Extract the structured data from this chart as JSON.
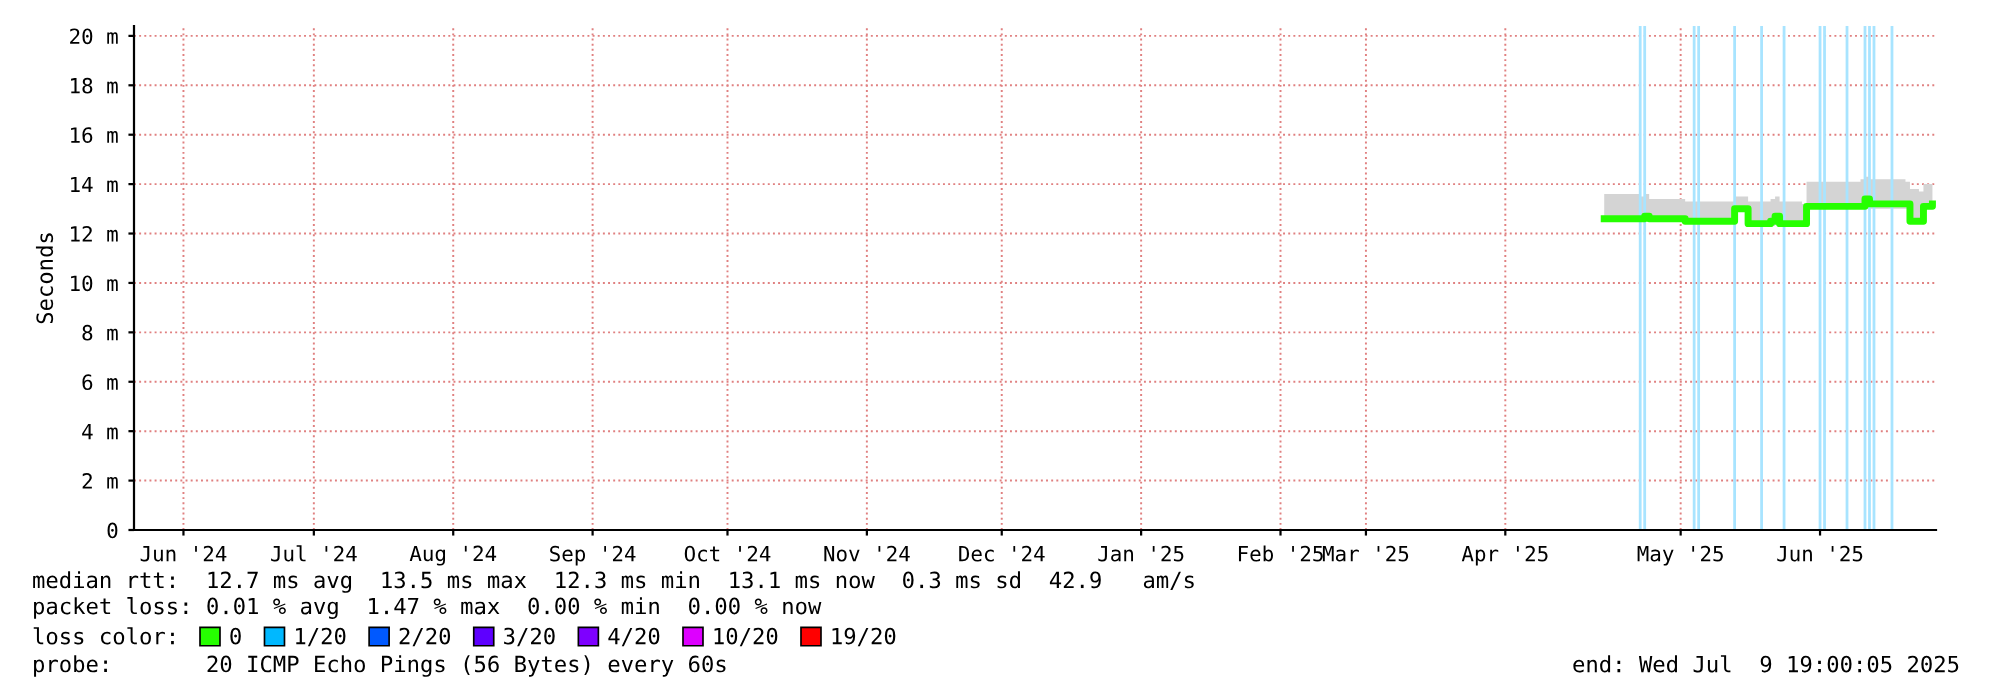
{
  "chart_data": {
    "type": "line",
    "ylabel": "Seconds",
    "xlim": [
      "2024-06-04",
      "2025-07-09T19:00"
    ],
    "xticks": [
      {
        "value": "2024-06-15",
        "label": "Jun '24"
      },
      {
        "value": "2024-07-14",
        "label": "Jul '24"
      },
      {
        "value": "2024-08-14",
        "label": "Aug '24"
      },
      {
        "value": "2024-09-14",
        "label": "Sep '24"
      },
      {
        "value": "2024-10-14",
        "label": "Oct '24"
      },
      {
        "value": "2024-11-14",
        "label": "Nov '24"
      },
      {
        "value": "2024-12-14",
        "label": "Dec '24"
      },
      {
        "value": "2025-01-14",
        "label": "Jan '25"
      },
      {
        "value": "2025-02-14",
        "label": "Feb '25"
      },
      {
        "value": "2025-03-05",
        "label": "Mar '25"
      },
      {
        "value": "2025-04-05",
        "label": "Apr '25"
      },
      {
        "value": "2025-05-14",
        "label": "May '25"
      },
      {
        "value": "2025-06-14",
        "label": "Jun '25"
      }
    ],
    "ylim": [
      0,
      20.4
    ],
    "yticks": [
      0,
      {
        "value": 2,
        "label": "2 m"
      },
      {
        "value": 4,
        "label": "4 m"
      },
      {
        "value": 6,
        "label": "6 m"
      },
      {
        "value": 8,
        "label": "8 m"
      },
      {
        "value": 10,
        "label": "10 m"
      },
      {
        "value": 12,
        "label": "12 m"
      },
      {
        "value": 14,
        "label": "14 m"
      },
      {
        "value": 16,
        "label": "16 m"
      },
      {
        "value": 18,
        "label": "18 m"
      },
      {
        "value": 20,
        "label": "20 m"
      }
    ],
    "grid": true,
    "legend": "bottom",
    "legend_title": "loss color:",
    "series": [
      {
        "name": "0",
        "color": "#26ff00",
        "x": [
          "2025-04-27",
          "2025-05-05",
          "2025-05-06",
          "2025-05-07",
          "2025-05-15",
          "2025-05-25",
          "2025-05-26",
          "2025-05-28",
          "2025-05-29",
          "2025-06-03",
          "2025-06-04",
          "2025-06-05",
          "2025-06-10",
          "2025-06-11",
          "2025-06-23",
          "2025-06-24",
          "2025-06-25",
          "2025-07-03",
          "2025-07-04",
          "2025-07-06",
          "2025-07-07",
          "2025-07-09"
        ],
        "values": [
          12.6,
          12.6,
          12.7,
          12.6,
          12.5,
          12.5,
          13.0,
          13.0,
          12.4,
          12.5,
          12.7,
          12.4,
          12.4,
          13.1,
          13.1,
          13.4,
          13.2,
          13.2,
          12.5,
          12.5,
          13.1,
          13.2
        ],
        "lower": [
          12.5,
          12.5,
          12.5,
          12.5,
          12.4,
          12.4,
          12.9,
          12.9,
          12.3,
          12.3,
          12.4,
          12.3,
          12.3,
          13.0,
          13.0,
          13.0,
          13.0,
          13.0,
          12.4,
          12.4,
          13.0,
          13.0
        ],
        "upper": [
          13.6,
          13.5,
          13.6,
          13.4,
          13.3,
          13.3,
          13.5,
          13.5,
          13.3,
          13.4,
          13.5,
          13.3,
          13.2,
          14.1,
          14.2,
          14.3,
          14.2,
          14.1,
          13.8,
          13.7,
          14.0,
          14.0
        ]
      },
      {
        "name": "1/20",
        "color": "#00b8ff"
      },
      {
        "name": "2/20",
        "color": "#0059ff"
      },
      {
        "name": "3/20",
        "color": "#5e00ff"
      },
      {
        "name": "4/20",
        "color": "#7e00ff"
      },
      {
        "name": "10/20",
        "color": "#dd00ff"
      },
      {
        "name": "19/20",
        "color": "#ff0000"
      }
    ],
    "ref_lines": [
      {
        "axis": "x",
        "value": "2025-05-05",
        "color": "#a8e4ff"
      },
      {
        "axis": "x",
        "value": "2025-05-06",
        "color": "#a8e4ff"
      },
      {
        "axis": "x",
        "value": "2025-05-17",
        "color": "#a8e4ff"
      },
      {
        "axis": "x",
        "value": "2025-05-18",
        "color": "#a8e4ff"
      },
      {
        "axis": "x",
        "value": "2025-05-26",
        "color": "#a8e4ff"
      },
      {
        "axis": "x",
        "value": "2025-06-01",
        "color": "#a8e4ff"
      },
      {
        "axis": "x",
        "value": "2025-06-06",
        "color": "#a8e4ff"
      },
      {
        "axis": "x",
        "value": "2025-06-14",
        "color": "#a8e4ff"
      },
      {
        "axis": "x",
        "value": "2025-06-15",
        "color": "#a8e4ff"
      },
      {
        "axis": "x",
        "value": "2025-06-20",
        "color": "#a8e4ff"
      },
      {
        "axis": "x",
        "value": "2025-06-24",
        "color": "#a8e4ff"
      },
      {
        "axis": "x",
        "value": "2025-06-25",
        "color": "#a8e4ff"
      },
      {
        "axis": "x",
        "value": "2025-06-26",
        "color": "#a8e4ff"
      },
      {
        "axis": "x",
        "value": "2025-06-30",
        "color": "#a8e4ff"
      }
    ],
    "annotations": [
      "median rtt:  12.7 ms avg  13.5 ms max  12.3 ms min  13.1 ms now  0.3 ms sd  42.9   am/s",
      "packet loss: 0.01 % avg  1.47 % max  0.00 % min  0.00 % now",
      "probe:       20 ICMP Echo Pings (56 Bytes) every 60s",
      "end: Wed Jul  9 19:00:05 2025"
    ]
  }
}
